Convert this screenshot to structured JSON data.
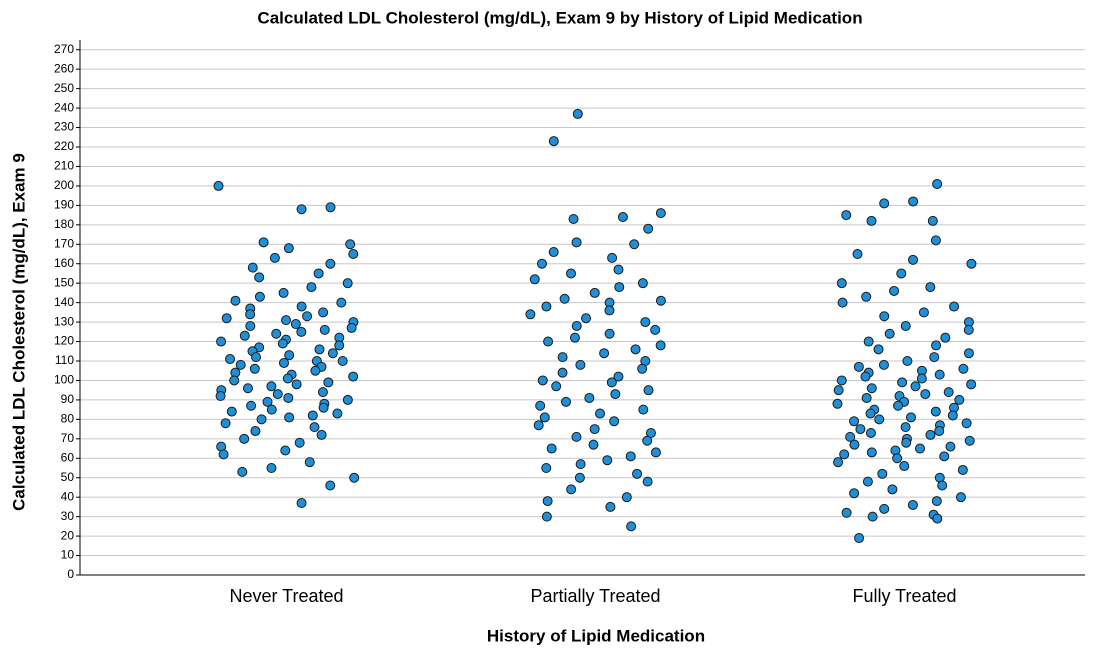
{
  "chart_data": {
    "type": "strip",
    "title": "Calculated LDL Cholesterol (mg/dL), Exam 9 by History of Lipid Medication",
    "x_label": "History of Lipid Medication",
    "y_label": "Calculated LDL Cholesterol (mg/dL), Exam 9",
    "categories": [
      "Never Treated",
      "Partially Treated",
      "Fully Treated"
    ],
    "color": "#1f90d8",
    "values": [
      [
        200,
        189,
        188,
        171,
        170,
        168,
        165,
        163,
        160,
        158,
        155,
        153,
        150,
        148,
        145,
        143,
        141,
        140,
        138,
        137,
        135,
        134,
        133,
        132,
        131,
        130,
        129,
        128,
        127,
        126,
        125,
        124,
        123,
        122,
        121,
        120,
        119,
        118,
        117,
        116,
        115,
        114,
        113,
        112,
        111,
        110,
        110,
        109,
        108,
        107,
        106,
        105,
        104,
        103,
        102,
        101,
        100,
        99,
        98,
        97,
        96,
        95,
        94,
        93,
        92,
        91,
        90,
        89,
        88,
        87,
        86,
        85,
        84,
        83,
        82,
        81,
        80,
        78,
        76,
        74,
        72,
        70,
        68,
        66,
        64,
        62,
        58,
        55,
        53,
        50,
        46,
        37
      ],
      [
        237,
        223,
        186,
        184,
        183,
        178,
        171,
        170,
        166,
        163,
        160,
        157,
        155,
        152,
        150,
        148,
        145,
        142,
        141,
        140,
        138,
        136,
        134,
        132,
        130,
        128,
        126,
        124,
        122,
        120,
        118,
        116,
        114,
        112,
        110,
        108,
        106,
        104,
        102,
        100,
        99,
        97,
        95,
        93,
        91,
        89,
        87,
        85,
        83,
        81,
        79,
        77,
        75,
        73,
        71,
        69,
        67,
        65,
        63,
        61,
        59,
        57,
        55,
        52,
        50,
        48,
        44,
        40,
        38,
        35,
        30,
        25
      ],
      [
        201,
        192,
        191,
        185,
        182,
        182,
        172,
        165,
        162,
        160,
        155,
        150,
        148,
        146,
        143,
        140,
        138,
        135,
        133,
        130,
        128,
        126,
        124,
        122,
        120,
        118,
        116,
        114,
        112,
        110,
        108,
        107,
        106,
        105,
        104,
        103,
        102,
        101,
        100,
        99,
        98,
        97,
        96,
        95,
        94,
        93,
        92,
        91,
        90,
        89,
        88,
        87,
        86,
        85,
        84,
        83,
        82,
        81,
        80,
        79,
        78,
        77,
        76,
        75,
        74,
        73,
        72,
        71,
        70,
        69,
        68,
        67,
        66,
        65,
        64,
        63,
        62,
        61,
        60,
        58,
        56,
        54,
        52,
        50,
        48,
        46,
        44,
        42,
        40,
        38,
        36,
        34,
        32,
        31,
        30,
        29,
        19
      ]
    ],
    "ylim": [
      0,
      275
    ],
    "yticks": [
      0,
      10,
      20,
      30,
      40,
      50,
      60,
      70,
      80,
      90,
      100,
      110,
      120,
      130,
      140,
      150,
      160,
      170,
      180,
      190,
      200,
      210,
      220,
      230,
      240,
      250,
      260,
      270
    ],
    "grid": true
  }
}
